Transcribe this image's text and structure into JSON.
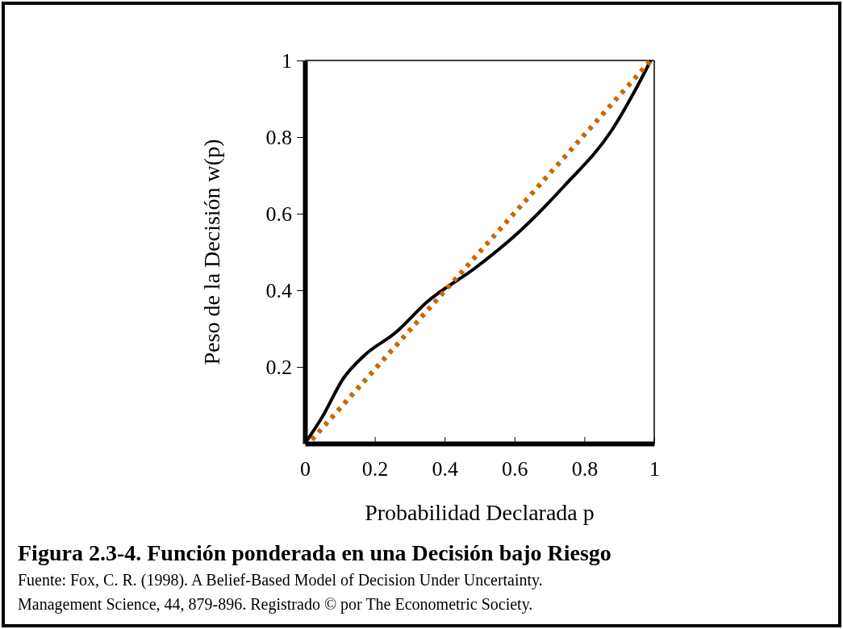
{
  "chart_data": {
    "type": "line",
    "title": "Figura 2.3-4. Función ponderada en una Decisión bajo Riesgo",
    "xlabel": "Probabilidad Declarada p",
    "ylabel": "Peso de la Decisión w(p)",
    "xlim": [
      0,
      1
    ],
    "ylim": [
      0,
      1
    ],
    "xticks": [
      0,
      0.2,
      0.4,
      0.6,
      0.8,
      1
    ],
    "yticks": [
      0.2,
      0.4,
      0.6,
      0.8,
      1
    ],
    "grid": false,
    "series": [
      {
        "color": "#000000",
        "line_style": "solid",
        "x": [
          0,
          0.05,
          0.11,
          0.17,
          0.26,
          0.35,
          0.49,
          0.61,
          0.74,
          0.88,
          0.95,
          0.99
        ],
        "values": [
          0,
          0.07,
          0.17,
          0.23,
          0.29,
          0.37,
          0.46,
          0.55,
          0.67,
          0.82,
          0.93,
          1.0
        ]
      },
      {
        "color": "#cc6600",
        "line_style": "dotted",
        "x": [
          0.02,
          0.99
        ],
        "values": [
          0.01,
          1.0
        ]
      }
    ],
    "annotations": [
      "Fuente: Fox, C. R. (1998).  A Belief-Based  Model of Decision Under Uncertainty.",
      "Management Science, 44, 879-896.  Registrado © por The Econometric Society."
    ]
  }
}
